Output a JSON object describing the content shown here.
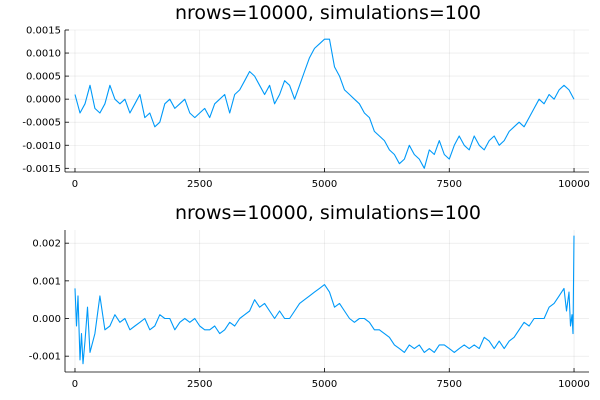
{
  "chart_data": [
    {
      "type": "line",
      "title": "nrows=10000, simulations=100",
      "xlabel": "",
      "ylabel": "",
      "xlim": [
        -200,
        10300
      ],
      "ylim": [
        -0.00158,
        0.0015
      ],
      "xticks": [
        0,
        2500,
        5000,
        7500,
        10000
      ],
      "xtick_labels": [
        "0",
        "2500",
        "5000",
        "7500",
        "10000"
      ],
      "yticks": [
        -0.0015,
        -0.001,
        -0.0005,
        0.0,
        0.0005,
        0.001,
        0.0015
      ],
      "ytick_labels": [
        "-0.0015",
        "-0.0010",
        "-0.0005",
        "0.0000",
        "0.0005",
        "0.0010",
        "0.0015"
      ],
      "grid": true,
      "legend": "none",
      "color": "#009af9",
      "series": [
        {
          "x": [
            0,
            100,
            200,
            300,
            400,
            500,
            600,
            700,
            800,
            900,
            1000,
            1100,
            1200,
            1300,
            1400,
            1500,
            1600,
            1700,
            1800,
            1900,
            2000,
            2100,
            2200,
            2300,
            2400,
            2500,
            2600,
            2700,
            2800,
            2900,
            3000,
            3100,
            3200,
            3300,
            3400,
            3500,
            3600,
            3700,
            3800,
            3900,
            4000,
            4100,
            4200,
            4300,
            4400,
            4500,
            4600,
            4700,
            4800,
            4900,
            5000,
            5100,
            5200,
            5300,
            5400,
            5500,
            5600,
            5700,
            5800,
            5900,
            6000,
            6100,
            6200,
            6300,
            6400,
            6500,
            6600,
            6700,
            6800,
            6900,
            7000,
            7100,
            7200,
            7300,
            7400,
            7500,
            7600,
            7700,
            7800,
            7900,
            8000,
            8100,
            8200,
            8300,
            8400,
            8500,
            8600,
            8700,
            8800,
            8900,
            9000,
            9100,
            9200,
            9300,
            9400,
            9500,
            9600,
            9700,
            9800,
            9900,
            10000
          ],
          "values": [
            0.0001,
            -0.0003,
            -0.0001,
            0.0003,
            -0.0002,
            -0.0003,
            -0.0001,
            0.0003,
            0.0,
            -0.0001,
            0.0,
            -0.0003,
            -0.0001,
            0.0001,
            -0.0004,
            -0.0003,
            -0.0006,
            -0.0005,
            -0.0001,
            0.0,
            -0.0002,
            -0.0001,
            0.0,
            -0.0003,
            -0.0004,
            -0.0003,
            -0.0002,
            -0.0004,
            -0.0001,
            0.0,
            0.0001,
            -0.0003,
            0.0001,
            0.0002,
            0.0004,
            0.0006,
            0.0005,
            0.0003,
            0.0001,
            0.0003,
            -0.0001,
            0.0001,
            0.0004,
            0.0003,
            0.0,
            0.0003,
            0.0006,
            0.0009,
            0.0011,
            0.0012,
            0.0013,
            0.0013,
            0.0007,
            0.0005,
            0.0002,
            0.0001,
            0.0,
            -0.0001,
            -0.0003,
            -0.0004,
            -0.0007,
            -0.0008,
            -0.0009,
            -0.0011,
            -0.0012,
            -0.0014,
            -0.0013,
            -0.001,
            -0.0012,
            -0.0013,
            -0.0015,
            -0.0011,
            -0.0012,
            -0.0009,
            -0.0012,
            -0.0013,
            -0.001,
            -0.0008,
            -0.001,
            -0.0011,
            -0.0008,
            -0.001,
            -0.0011,
            -0.0009,
            -0.0008,
            -0.001,
            -0.0009,
            -0.0007,
            -0.0006,
            -0.0005,
            -0.0006,
            -0.0004,
            -0.0002,
            0.0,
            -0.0001,
            0.0001,
            0.0,
            0.0002,
            0.0003,
            0.0002,
            0.0
          ]
        }
      ]
    },
    {
      "type": "line",
      "title": "nrows=10000, simulations=100",
      "xlabel": "",
      "ylabel": "",
      "xlim": [
        -200,
        10300
      ],
      "ylim": [
        -0.00142,
        0.00235
      ],
      "xticks": [
        0,
        2500,
        5000,
        7500,
        10000
      ],
      "xtick_labels": [
        "0",
        "2500",
        "5000",
        "7500",
        "10000"
      ],
      "yticks": [
        -0.001,
        0.0,
        0.001,
        0.002
      ],
      "ytick_labels": [
        "-0.001",
        "0.000",
        "0.001",
        "0.002"
      ],
      "grid": true,
      "legend": "none",
      "color": "#009af9",
      "series": [
        {
          "x": [
            0,
            30,
            60,
            100,
            130,
            160,
            200,
            250,
            300,
            400,
            500,
            600,
            700,
            800,
            900,
            1000,
            1100,
            1200,
            1300,
            1400,
            1500,
            1600,
            1700,
            1800,
            1900,
            2000,
            2100,
            2200,
            2300,
            2400,
            2500,
            2600,
            2700,
            2800,
            2900,
            3000,
            3100,
            3200,
            3300,
            3400,
            3500,
            3600,
            3700,
            3800,
            3900,
            4000,
            4100,
            4200,
            4300,
            4400,
            4500,
            4600,
            4700,
            4800,
            4900,
            5000,
            5100,
            5200,
            5300,
            5400,
            5500,
            5600,
            5700,
            5800,
            5900,
            6000,
            6100,
            6200,
            6300,
            6400,
            6500,
            6600,
            6700,
            6800,
            6900,
            7000,
            7100,
            7200,
            7300,
            7400,
            7500,
            7600,
            7700,
            7800,
            7900,
            8000,
            8100,
            8200,
            8300,
            8400,
            8500,
            8600,
            8700,
            8800,
            8900,
            9000,
            9100,
            9200,
            9300,
            9400,
            9500,
            9600,
            9700,
            9800,
            9850,
            9900,
            9930,
            9960,
            9980,
            10000
          ],
          "values": [
            0.0008,
            -0.0002,
            0.0006,
            -0.0011,
            -0.0004,
            -0.0012,
            -0.0006,
            0.0003,
            -0.0009,
            -0.0004,
            0.0006,
            -0.0003,
            -0.0002,
            0.0001,
            -0.0001,
            0.0,
            -0.0003,
            -0.0002,
            -0.0001,
            0.0,
            -0.0003,
            -0.0002,
            0.0001,
            0.0,
            0.0,
            -0.0003,
            -0.0001,
            0.0,
            -0.0001,
            0.0,
            -0.0002,
            -0.0003,
            -0.0003,
            -0.0002,
            -0.0004,
            -0.0003,
            -0.0001,
            -0.0002,
            0.0,
            0.0001,
            0.0002,
            0.0005,
            0.0003,
            0.0004,
            0.0002,
            0.0,
            0.0002,
            0.0,
            0.0,
            0.0002,
            0.0004,
            0.0005,
            0.0006,
            0.0007,
            0.0008,
            0.0009,
            0.0007,
            0.0003,
            0.0004,
            0.0002,
            0.0,
            -0.0001,
            0.0,
            0.0,
            -0.0001,
            -0.0003,
            -0.0003,
            -0.0004,
            -0.0005,
            -0.0007,
            -0.0008,
            -0.0009,
            -0.0007,
            -0.0008,
            -0.0007,
            -0.0009,
            -0.0008,
            -0.0009,
            -0.0007,
            -0.0007,
            -0.0008,
            -0.0009,
            -0.0008,
            -0.0007,
            -0.0008,
            -0.0007,
            -0.0008,
            -0.0005,
            -0.0006,
            -0.0008,
            -0.0006,
            -0.0008,
            -0.0006,
            -0.0005,
            -0.0003,
            -0.0001,
            -0.0002,
            0.0,
            0.0,
            0.0,
            0.0003,
            0.0004,
            0.0006,
            0.0008,
            0.0002,
            0.0007,
            -0.0002,
            0.0001,
            -0.0004,
            0.0022
          ]
        }
      ]
    }
  ]
}
